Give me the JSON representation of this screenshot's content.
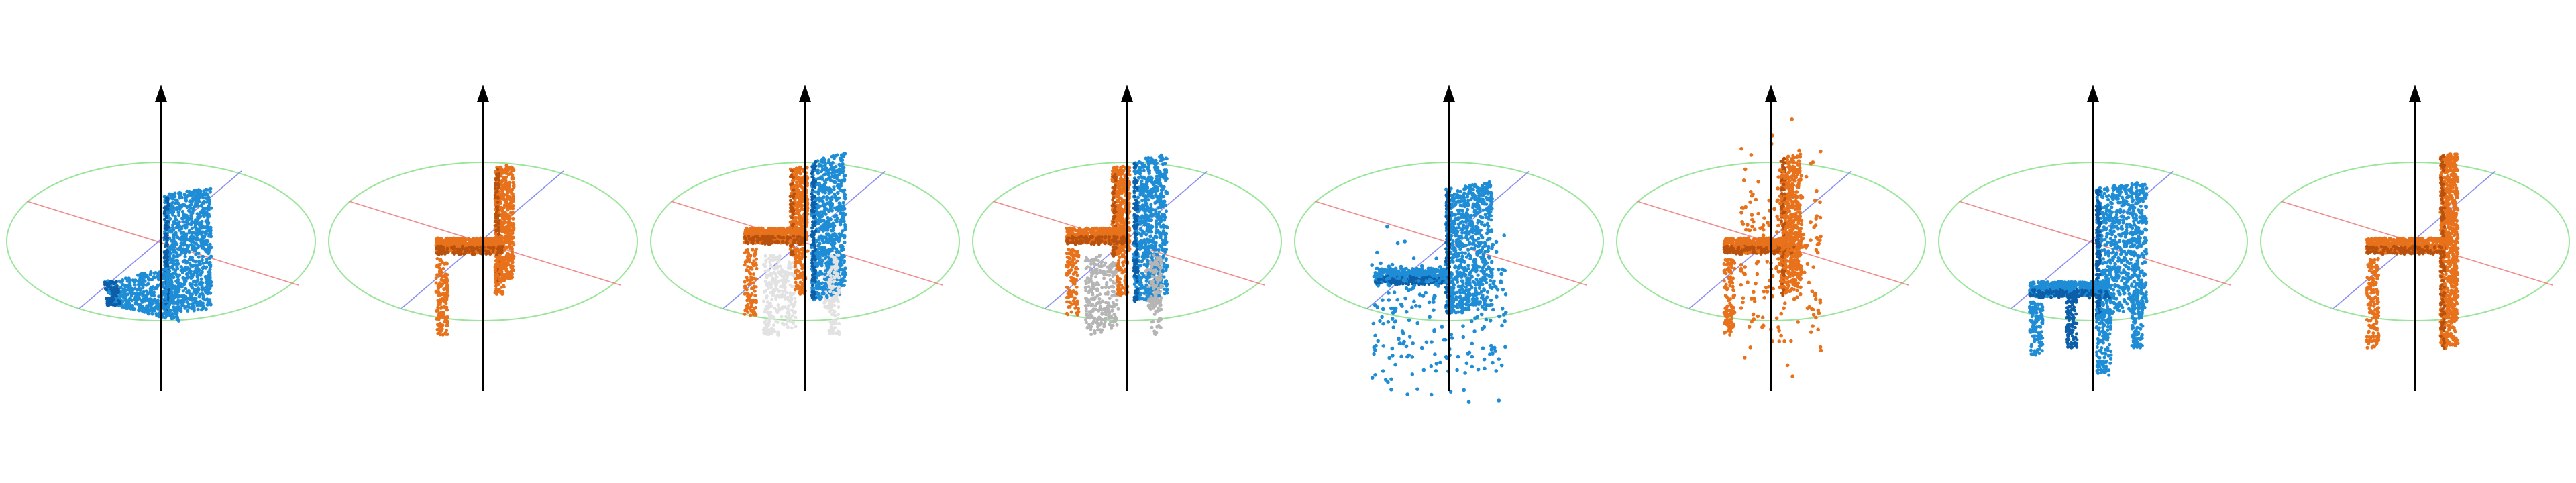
{
  "figure": {
    "panel_count": 8,
    "colors": {
      "blue": "#1f8dd6",
      "blue_dark": "#0c5ea8",
      "orange": "#e8721c",
      "orange_dark": "#b8500e",
      "gray": "#b5b5b5",
      "gray_light": "#e2e2e2",
      "axis_vertical": "#000000",
      "axis_red": "#f08a8a",
      "axis_blue": "#8a8ef0",
      "ring_green": "#9be59b"
    },
    "panels": [
      {
        "id": 1,
        "shape": "partial-chair-back-and-seat",
        "color": "blue",
        "scatter": false,
        "ghost": null
      },
      {
        "id": 2,
        "shape": "chair-side-profile",
        "color": "orange",
        "scatter": false,
        "ghost": null
      },
      {
        "id": 3,
        "shape": "chair-overlay-pair",
        "color": "orange",
        "overlay": "blue",
        "scatter": false,
        "ghost": "gray_light"
      },
      {
        "id": 4,
        "shape": "chair-overlay-pair",
        "color": "orange",
        "overlay": "blue",
        "scatter": false,
        "ghost": "gray"
      },
      {
        "id": 5,
        "shape": "chair-noisy",
        "color": "blue",
        "scatter": true,
        "ghost": null
      },
      {
        "id": 6,
        "shape": "chair-noisy-side",
        "color": "orange",
        "scatter": true,
        "ghost": null
      },
      {
        "id": 7,
        "shape": "chair-full-3d",
        "color": "blue",
        "scatter": false,
        "ghost": null
      },
      {
        "id": 8,
        "shape": "chair-side-profile-tall",
        "color": "orange",
        "scatter": false,
        "ghost": null
      }
    ]
  }
}
